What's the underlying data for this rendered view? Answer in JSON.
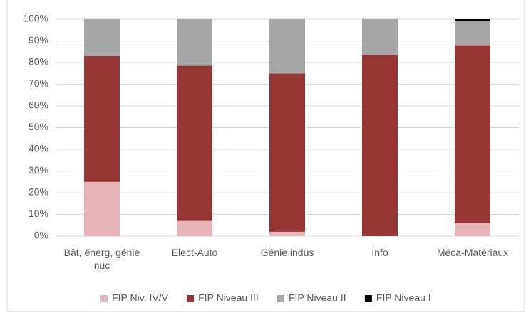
{
  "chart_data": {
    "type": "stacked_bar",
    "categories": [
      "Bât, énerg, génie nuc",
      "Elect-Auto",
      "Génie indus",
      "Info",
      "Méca-Matériaux"
    ],
    "series": [
      {
        "name": "FIP Niv. IV/V",
        "color": "#e6b3b7",
        "values": [
          25,
          7,
          2,
          0,
          6
        ]
      },
      {
        "name": "FIP Niveau III",
        "color": "#953535",
        "values": [
          58,
          71.5,
          73,
          83.5,
          82
        ]
      },
      {
        "name": "FIP Niveau II",
        "color": "#a6a6a6",
        "values": [
          17,
          21.5,
          25,
          16.5,
          11
        ]
      },
      {
        "name": "FIP Niveau I",
        "color": "#000000",
        "values": [
          0,
          0,
          0,
          0,
          1
        ]
      }
    ],
    "ylim": [
      0,
      100
    ],
    "yticks": [
      {
        "value": 0,
        "label": "0%"
      },
      {
        "value": 10,
        "label": "10%"
      },
      {
        "value": 20,
        "label": "20%"
      },
      {
        "value": 30,
        "label": "30%"
      },
      {
        "value": 40,
        "label": "40%"
      },
      {
        "value": 50,
        "label": "50%"
      },
      {
        "value": 60,
        "label": "60%"
      },
      {
        "value": 70,
        "label": "70%"
      },
      {
        "value": 80,
        "label": "80%"
      },
      {
        "value": 90,
        "label": "90%"
      },
      {
        "value": 100,
        "label": "100%"
      }
    ],
    "grid": true,
    "legend": "bottom"
  }
}
